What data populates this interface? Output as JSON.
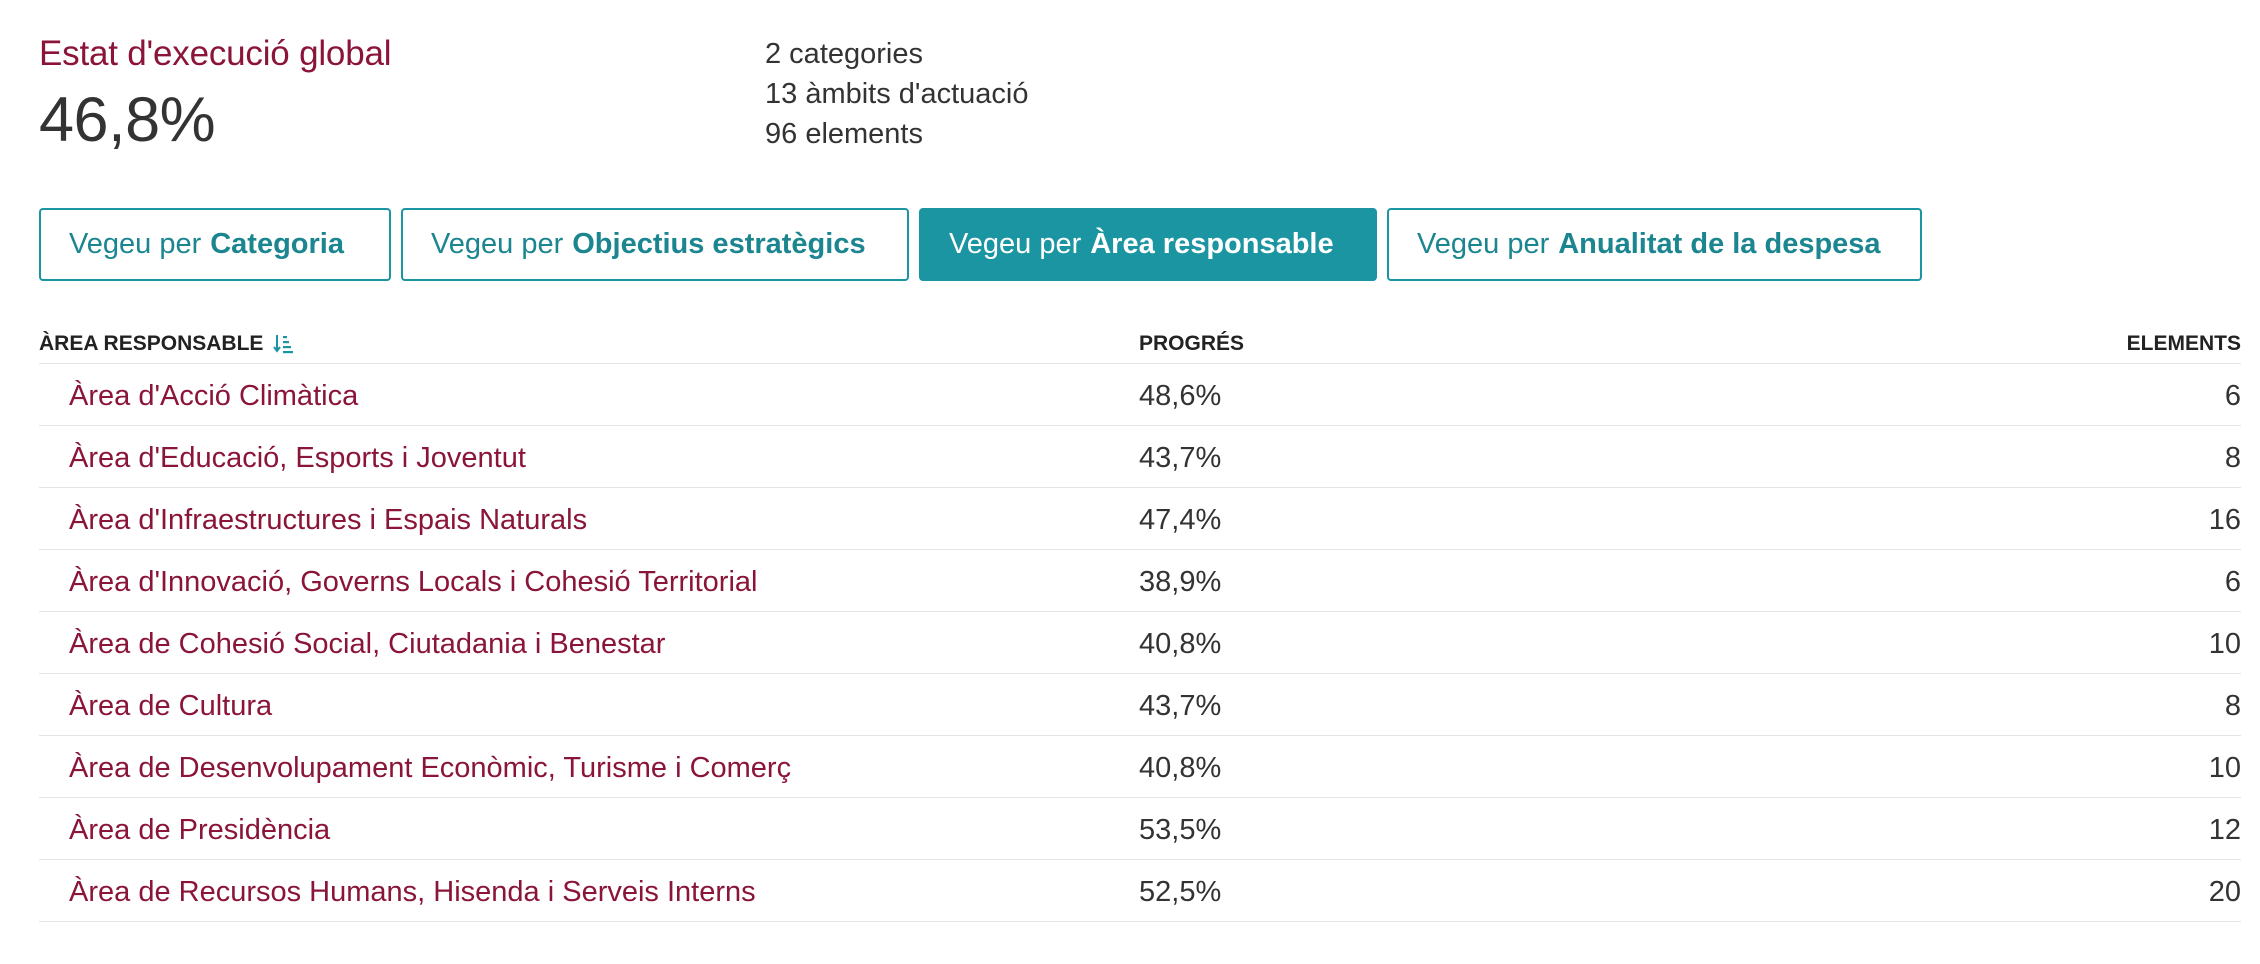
{
  "summary": {
    "title": "Estat d'execució global",
    "value": "46,8%"
  },
  "stats": {
    "categories": "2 categories",
    "ambits": "13 àmbits d'actuació",
    "elements": "96 elements"
  },
  "view_buttons": [
    {
      "prefix": "Vegeu per",
      "label": "Categoria",
      "active": false
    },
    {
      "prefix": "Vegeu per",
      "label": "Objectius estratègics",
      "active": false
    },
    {
      "prefix": "Vegeu per",
      "label": "Àrea responsable",
      "active": true
    },
    {
      "prefix": "Vegeu per",
      "label": "Anualitat de la despesa",
      "active": false
    }
  ],
  "table": {
    "headers": {
      "area": "ÀREA RESPONSABLE",
      "progress": "PROGRÉS",
      "elements": "ELEMENTS"
    },
    "sort_icon": "sort-ascending-icon",
    "rows": [
      {
        "area": "Àrea d'Acció Climàtica",
        "progress": "48,6%",
        "elements": "6"
      },
      {
        "area": "Àrea d'Educació, Esports i Joventut",
        "progress": "43,7%",
        "elements": "8"
      },
      {
        "area": "Àrea d'Infraestructures i Espais Naturals",
        "progress": "47,4%",
        "elements": "16"
      },
      {
        "area": "Àrea d'Innovació, Governs Locals i Cohesió Territorial",
        "progress": "38,9%",
        "elements": "6"
      },
      {
        "area": "Àrea de Cohesió Social, Ciutadania i Benestar",
        "progress": "40,8%",
        "elements": "10"
      },
      {
        "area": "Àrea de Cultura",
        "progress": "43,7%",
        "elements": "8"
      },
      {
        "area": "Àrea de Desenvolupament Econòmic, Turisme i Comerç",
        "progress": "40,8%",
        "elements": "10"
      },
      {
        "area": "Àrea de Presidència",
        "progress": "53,5%",
        "elements": "12"
      },
      {
        "area": "Àrea de Recursos Humans, Hisenda i Serveis Interns",
        "progress": "52,5%",
        "elements": "20"
      }
    ]
  },
  "colors": {
    "accent_teal": "#1b95a1",
    "brand_maroon": "#8a1538",
    "text": "#333333"
  }
}
